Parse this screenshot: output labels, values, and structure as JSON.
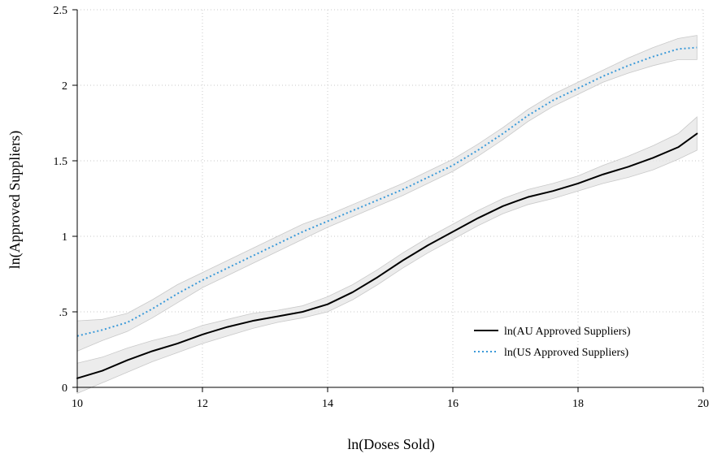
{
  "chart_data": {
    "type": "line",
    "xlabel": "ln(Doses Sold)",
    "ylabel": "ln(Approved Suppliers)",
    "xlim": [
      10,
      20
    ],
    "ylim": [
      0,
      2.5
    ],
    "xticks": [
      10,
      12,
      14,
      16,
      18,
      20
    ],
    "xtick_labels": [
      "10",
      "12",
      "14",
      "16",
      "18",
      "20"
    ],
    "yticks": [
      0,
      0.5,
      1,
      1.5,
      2,
      2.5
    ],
    "ytick_labels": [
      "0",
      ".5",
      "1",
      "1.5",
      "2",
      "2.5"
    ],
    "grid": true,
    "legend_position": "bottom-right",
    "series": [
      {
        "name": "ln(AU Approved Suppliers)",
        "style": "solid",
        "color": "#000000",
        "band_color": "#e6e6e6",
        "x": [
          10.0,
          10.4,
          10.8,
          11.2,
          11.6,
          12.0,
          12.4,
          12.8,
          13.2,
          13.6,
          14.0,
          14.4,
          14.8,
          15.2,
          15.6,
          16.0,
          16.4,
          16.8,
          17.2,
          17.6,
          18.0,
          18.4,
          18.8,
          19.2,
          19.6,
          19.9
        ],
        "values": [
          0.06,
          0.11,
          0.18,
          0.24,
          0.29,
          0.35,
          0.4,
          0.44,
          0.47,
          0.5,
          0.55,
          0.63,
          0.73,
          0.84,
          0.94,
          1.03,
          1.12,
          1.2,
          1.26,
          1.3,
          1.35,
          1.41,
          1.46,
          1.52,
          1.59,
          1.68
        ],
        "lower": [
          -0.04,
          0.03,
          0.1,
          0.17,
          0.23,
          0.29,
          0.34,
          0.39,
          0.43,
          0.46,
          0.5,
          0.58,
          0.68,
          0.79,
          0.89,
          0.98,
          1.07,
          1.15,
          1.21,
          1.25,
          1.3,
          1.35,
          1.39,
          1.44,
          1.51,
          1.57
        ],
        "upper": [
          0.16,
          0.2,
          0.26,
          0.31,
          0.35,
          0.41,
          0.45,
          0.49,
          0.51,
          0.54,
          0.6,
          0.68,
          0.78,
          0.89,
          0.99,
          1.08,
          1.17,
          1.25,
          1.31,
          1.35,
          1.4,
          1.47,
          1.53,
          1.6,
          1.68,
          1.79
        ]
      },
      {
        "name": "ln(US Approved Suppliers)",
        "style": "dotted",
        "color": "#3b9ad9",
        "band_color": "#e6e6e6",
        "x": [
          10.0,
          10.4,
          10.8,
          11.2,
          11.6,
          12.0,
          12.4,
          12.8,
          13.2,
          13.6,
          14.0,
          14.4,
          14.8,
          15.2,
          15.6,
          16.0,
          16.4,
          16.8,
          17.2,
          17.6,
          18.0,
          18.4,
          18.8,
          19.2,
          19.6,
          19.9
        ],
        "values": [
          0.34,
          0.38,
          0.43,
          0.52,
          0.62,
          0.71,
          0.79,
          0.87,
          0.95,
          1.03,
          1.1,
          1.17,
          1.24,
          1.31,
          1.39,
          1.47,
          1.57,
          1.68,
          1.8,
          1.9,
          1.98,
          2.06,
          2.13,
          2.19,
          2.24,
          2.25
        ],
        "lower": [
          0.24,
          0.31,
          0.37,
          0.46,
          0.56,
          0.66,
          0.74,
          0.82,
          0.9,
          0.98,
          1.06,
          1.13,
          1.2,
          1.27,
          1.35,
          1.43,
          1.53,
          1.64,
          1.76,
          1.86,
          1.94,
          2.02,
          2.08,
          2.13,
          2.17,
          2.17
        ],
        "upper": [
          0.44,
          0.45,
          0.49,
          0.58,
          0.68,
          0.76,
          0.84,
          0.92,
          1.0,
          1.08,
          1.14,
          1.21,
          1.28,
          1.35,
          1.43,
          1.51,
          1.61,
          1.72,
          1.84,
          1.94,
          2.02,
          2.1,
          2.18,
          2.25,
          2.31,
          2.33
        ]
      }
    ]
  }
}
